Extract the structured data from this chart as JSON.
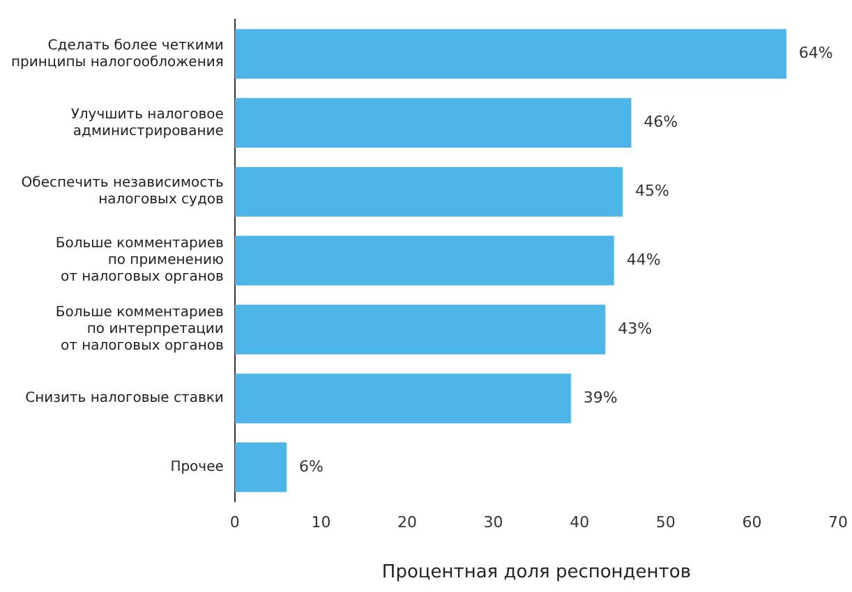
{
  "chart_data": {
    "type": "bar",
    "orientation": "horizontal",
    "xlabel": "Процентная доля респондентов",
    "categories": [
      "Сделать более четкими\nпринципы налогообложения",
      "Улучшить налоговое\nадминистрирование",
      "Обеспечить независимость\nналоговых судов",
      "Больше комментариев\nпо применению\nот налоговых органов",
      "Больше комментариев\nпо интерпретации\nот налоговых органов",
      "Снизить налоговые ставки",
      "Прочее"
    ],
    "values": [
      64,
      46,
      45,
      44,
      43,
      39,
      6
    ],
    "value_labels": [
      "64%",
      "46%",
      "45%",
      "44%",
      "43%",
      "39%",
      "6%"
    ],
    "color": "#4db5e8",
    "xlim": [
      0,
      70
    ],
    "xticks": [
      0,
      10,
      20,
      30,
      40,
      50,
      60,
      70
    ],
    "grid": false,
    "legend": false
  }
}
